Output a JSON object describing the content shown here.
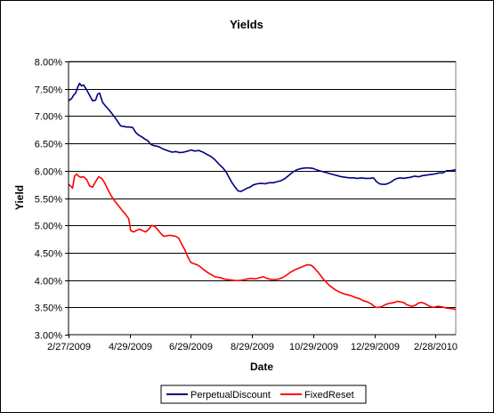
{
  "chart_data": {
    "type": "line",
    "title": "Yields",
    "xlabel": "Date",
    "ylabel": "Yield",
    "ylim": [
      0.03,
      0.08
    ],
    "y_ticks": [
      0.03,
      0.035,
      0.04,
      0.045,
      0.05,
      0.055,
      0.06,
      0.065,
      0.07,
      0.075,
      0.08
    ],
    "y_tick_labels": [
      "3.00%",
      "3.50%",
      "4.00%",
      "4.50%",
      "5.00%",
      "5.50%",
      "6.00%",
      "6.50%",
      "7.00%",
      "7.50%",
      "8.00%"
    ],
    "x_range": [
      "2009-02-27",
      "2010-03-20"
    ],
    "x_ticks": [
      "2009-02-27",
      "2009-04-29",
      "2009-06-29",
      "2009-08-29",
      "2009-10-29",
      "2009-12-29",
      "2010-02-28"
    ],
    "x_tick_labels": [
      "2/27/2009",
      "4/29/2009",
      "6/29/2009",
      "8/29/2009",
      "10/29/2009",
      "12/29/2009",
      "2/28/2010"
    ],
    "grid": "horizontal",
    "legend_position": "bottom",
    "series": [
      {
        "name": "PerpetualDiscount",
        "color": "#000080",
        "points": [
          [
            "2009-02-27",
            0.0728
          ],
          [
            "2009-03-02",
            0.0732
          ],
          [
            "2009-03-04",
            0.0738
          ],
          [
            "2009-03-06",
            0.0742
          ],
          [
            "2009-03-08",
            0.0752
          ],
          [
            "2009-03-10",
            0.076
          ],
          [
            "2009-03-12",
            0.0755
          ],
          [
            "2009-03-14",
            0.0757
          ],
          [
            "2009-03-17",
            0.0748
          ],
          [
            "2009-03-20",
            0.0738
          ],
          [
            "2009-03-23",
            0.0728
          ],
          [
            "2009-03-26",
            0.0729
          ],
          [
            "2009-03-28",
            0.074
          ],
          [
            "2009-03-30",
            0.0742
          ],
          [
            "2009-04-02",
            0.0725
          ],
          [
            "2009-04-05",
            0.0718
          ],
          [
            "2009-04-08",
            0.0712
          ],
          [
            "2009-04-11",
            0.0705
          ],
          [
            "2009-04-14",
            0.0698
          ],
          [
            "2009-04-17",
            0.069
          ],
          [
            "2009-04-20",
            0.0682
          ],
          [
            "2009-04-23",
            0.0681
          ],
          [
            "2009-04-26",
            0.068
          ],
          [
            "2009-04-29",
            0.068
          ],
          [
            "2009-05-02",
            0.0679
          ],
          [
            "2009-05-05",
            0.067
          ],
          [
            "2009-05-08",
            0.0665
          ],
          [
            "2009-05-11",
            0.0662
          ],
          [
            "2009-05-14",
            0.0658
          ],
          [
            "2009-05-17",
            0.0655
          ],
          [
            "2009-05-20",
            0.0648
          ],
          [
            "2009-05-23",
            0.0646
          ],
          [
            "2009-05-26",
            0.0645
          ],
          [
            "2009-05-29",
            0.0643
          ],
          [
            "2009-06-01",
            0.064
          ],
          [
            "2009-06-04",
            0.0638
          ],
          [
            "2009-06-07",
            0.0636
          ],
          [
            "2009-06-10",
            0.0634
          ],
          [
            "2009-06-14",
            0.0635
          ],
          [
            "2009-06-18",
            0.0633
          ],
          [
            "2009-06-22",
            0.0634
          ],
          [
            "2009-06-26",
            0.0636
          ],
          [
            "2009-06-29",
            0.0638
          ],
          [
            "2009-07-03",
            0.0636
          ],
          [
            "2009-07-07",
            0.0637
          ],
          [
            "2009-07-11",
            0.0634
          ],
          [
            "2009-07-15",
            0.063
          ],
          [
            "2009-07-19",
            0.0626
          ],
          [
            "2009-07-23",
            0.062
          ],
          [
            "2009-07-27",
            0.0612
          ],
          [
            "2009-07-31",
            0.0605
          ],
          [
            "2009-08-03",
            0.0598
          ],
          [
            "2009-08-06",
            0.0588
          ],
          [
            "2009-08-09",
            0.0578
          ],
          [
            "2009-08-12",
            0.057
          ],
          [
            "2009-08-15",
            0.0563
          ],
          [
            "2009-08-18",
            0.0562
          ],
          [
            "2009-08-21",
            0.0565
          ],
          [
            "2009-08-24",
            0.0568
          ],
          [
            "2009-08-27",
            0.057
          ],
          [
            "2009-08-30",
            0.0574
          ],
          [
            "2009-09-03",
            0.0576
          ],
          [
            "2009-09-07",
            0.0577
          ],
          [
            "2009-09-11",
            0.0576
          ],
          [
            "2009-09-15",
            0.0578
          ],
          [
            "2009-09-19",
            0.0578
          ],
          [
            "2009-09-23",
            0.058
          ],
          [
            "2009-09-27",
            0.0582
          ],
          [
            "2009-10-01",
            0.0586
          ],
          [
            "2009-10-05",
            0.0592
          ],
          [
            "2009-10-09",
            0.0598
          ],
          [
            "2009-10-13",
            0.0602
          ],
          [
            "2009-10-17",
            0.0604
          ],
          [
            "2009-10-21",
            0.0605
          ],
          [
            "2009-10-25",
            0.0605
          ],
          [
            "2009-10-29",
            0.0604
          ],
          [
            "2009-11-02",
            0.0601
          ],
          [
            "2009-11-06",
            0.0599
          ],
          [
            "2009-11-10",
            0.0597
          ],
          [
            "2009-11-14",
            0.0595
          ],
          [
            "2009-11-18",
            0.0593
          ],
          [
            "2009-11-22",
            0.0591
          ],
          [
            "2009-11-26",
            0.0589
          ],
          [
            "2009-11-30",
            0.0588
          ],
          [
            "2009-12-04",
            0.0587
          ],
          [
            "2009-12-08",
            0.0587
          ],
          [
            "2009-12-12",
            0.0586
          ],
          [
            "2009-12-16",
            0.0587
          ],
          [
            "2009-12-20",
            0.0586
          ],
          [
            "2009-12-24",
            0.0586
          ],
          [
            "2009-12-28",
            0.0587
          ],
          [
            "2009-12-31",
            0.058
          ],
          [
            "2010-01-03",
            0.0576
          ],
          [
            "2010-01-06",
            0.0575
          ],
          [
            "2010-01-09",
            0.0575
          ],
          [
            "2010-01-12",
            0.0577
          ],
          [
            "2010-01-15",
            0.058
          ],
          [
            "2010-01-18",
            0.0584
          ],
          [
            "2010-01-21",
            0.0586
          ],
          [
            "2010-01-24",
            0.0587
          ],
          [
            "2010-01-27",
            0.0586
          ],
          [
            "2010-01-30",
            0.0587
          ],
          [
            "2010-02-03",
            0.0588
          ],
          [
            "2010-02-07",
            0.059
          ],
          [
            "2010-02-11",
            0.0589
          ],
          [
            "2010-02-15",
            0.0591
          ],
          [
            "2010-02-19",
            0.0592
          ],
          [
            "2010-02-23",
            0.0593
          ],
          [
            "2010-02-27",
            0.0594
          ],
          [
            "2010-03-03",
            0.0596
          ],
          [
            "2010-03-07",
            0.0596
          ],
          [
            "2010-03-11",
            0.06
          ],
          [
            "2010-03-15",
            0.06
          ],
          [
            "2010-03-20",
            0.0602
          ]
        ]
      },
      {
        "name": "FixedReset",
        "color": "#ff0000",
        "points": [
          [
            "2009-02-27",
            0.0575
          ],
          [
            "2009-03-01",
            0.0572
          ],
          [
            "2009-03-03",
            0.0568
          ],
          [
            "2009-03-05",
            0.059
          ],
          [
            "2009-03-07",
            0.0594
          ],
          [
            "2009-03-09",
            0.059
          ],
          [
            "2009-03-11",
            0.0588
          ],
          [
            "2009-03-14",
            0.0589
          ],
          [
            "2009-03-17",
            0.0584
          ],
          [
            "2009-03-20",
            0.0572
          ],
          [
            "2009-03-23",
            0.057
          ],
          [
            "2009-03-26",
            0.058
          ],
          [
            "2009-03-29",
            0.0589
          ],
          [
            "2009-04-01",
            0.0586
          ],
          [
            "2009-04-04",
            0.0578
          ],
          [
            "2009-04-07",
            0.0566
          ],
          [
            "2009-04-10",
            0.0556
          ],
          [
            "2009-04-13",
            0.0547
          ],
          [
            "2009-04-16",
            0.054
          ],
          [
            "2009-04-19",
            0.0533
          ],
          [
            "2009-04-22",
            0.0526
          ],
          [
            "2009-04-25",
            0.052
          ],
          [
            "2009-04-28",
            0.0512
          ],
          [
            "2009-04-30",
            0.049
          ],
          [
            "2009-05-03",
            0.0488
          ],
          [
            "2009-05-06",
            0.0491
          ],
          [
            "2009-05-09",
            0.0493
          ],
          [
            "2009-05-12",
            0.049
          ],
          [
            "2009-05-15",
            0.0488
          ],
          [
            "2009-05-18",
            0.0493
          ],
          [
            "2009-05-21",
            0.05
          ],
          [
            "2009-05-24",
            0.0498
          ],
          [
            "2009-05-27",
            0.0492
          ],
          [
            "2009-05-30",
            0.0485
          ],
          [
            "2009-06-02",
            0.048
          ],
          [
            "2009-06-05",
            0.0481
          ],
          [
            "2009-06-08",
            0.0482
          ],
          [
            "2009-06-11",
            0.0481
          ],
          [
            "2009-06-14",
            0.048
          ],
          [
            "2009-06-17",
            0.0476
          ],
          [
            "2009-06-20",
            0.0465
          ],
          [
            "2009-06-23",
            0.0455
          ],
          [
            "2009-06-26",
            0.0442
          ],
          [
            "2009-06-29",
            0.0432
          ],
          [
            "2009-07-02",
            0.043
          ],
          [
            "2009-07-05",
            0.0428
          ],
          [
            "2009-07-08",
            0.0425
          ],
          [
            "2009-07-11",
            0.042
          ],
          [
            "2009-07-14",
            0.0416
          ],
          [
            "2009-07-17",
            0.0412
          ],
          [
            "2009-07-20",
            0.0409
          ],
          [
            "2009-07-23",
            0.0406
          ],
          [
            "2009-07-26",
            0.0405
          ],
          [
            "2009-07-29",
            0.0404
          ],
          [
            "2009-08-01",
            0.0402
          ],
          [
            "2009-08-04",
            0.0401
          ],
          [
            "2009-08-08",
            0.04
          ],
          [
            "2009-08-12",
            0.0399
          ],
          [
            "2009-08-16",
            0.0399
          ],
          [
            "2009-08-20",
            0.04
          ],
          [
            "2009-08-24",
            0.0402
          ],
          [
            "2009-08-28",
            0.0403
          ],
          [
            "2009-09-01",
            0.0402
          ],
          [
            "2009-09-05",
            0.0404
          ],
          [
            "2009-09-09",
            0.0406
          ],
          [
            "2009-09-13",
            0.0403
          ],
          [
            "2009-09-17",
            0.0401
          ],
          [
            "2009-09-21",
            0.0401
          ],
          [
            "2009-09-25",
            0.0402
          ],
          [
            "2009-09-29",
            0.0405
          ],
          [
            "2009-10-03",
            0.041
          ],
          [
            "2009-10-07",
            0.0415
          ],
          [
            "2009-10-11",
            0.0419
          ],
          [
            "2009-10-15",
            0.0422
          ],
          [
            "2009-10-19",
            0.0425
          ],
          [
            "2009-10-23",
            0.0428
          ],
          [
            "2009-10-27",
            0.0427
          ],
          [
            "2009-10-30",
            0.0422
          ],
          [
            "2009-11-02",
            0.0416
          ],
          [
            "2009-11-05",
            0.0409
          ],
          [
            "2009-11-08",
            0.0402
          ],
          [
            "2009-11-11",
            0.0396
          ],
          [
            "2009-11-14",
            0.039
          ],
          [
            "2009-11-17",
            0.0386
          ],
          [
            "2009-11-20",
            0.0382
          ],
          [
            "2009-11-24",
            0.0378
          ],
          [
            "2009-11-28",
            0.0375
          ],
          [
            "2009-12-02",
            0.0373
          ],
          [
            "2009-12-06",
            0.0371
          ],
          [
            "2009-12-10",
            0.0368
          ],
          [
            "2009-12-14",
            0.0366
          ],
          [
            "2009-12-18",
            0.0362
          ],
          [
            "2009-12-22",
            0.036
          ],
          [
            "2009-12-26",
            0.0356
          ],
          [
            "2009-12-30",
            0.035
          ],
          [
            "2010-01-03",
            0.035
          ],
          [
            "2010-01-06",
            0.0352
          ],
          [
            "2010-01-09",
            0.0355
          ],
          [
            "2010-01-12",
            0.0357
          ],
          [
            "2010-01-15",
            0.0358
          ],
          [
            "2010-01-18",
            0.0359
          ],
          [
            "2010-01-21",
            0.0361
          ],
          [
            "2010-01-24",
            0.036
          ],
          [
            "2010-01-27",
            0.0359
          ],
          [
            "2010-01-30",
            0.0355
          ],
          [
            "2010-02-02",
            0.0353
          ],
          [
            "2010-02-05",
            0.0352
          ],
          [
            "2010-02-08",
            0.0354
          ],
          [
            "2010-02-11",
            0.0358
          ],
          [
            "2010-02-14",
            0.0359
          ],
          [
            "2010-02-17",
            0.0357
          ],
          [
            "2010-02-20",
            0.0354
          ],
          [
            "2010-02-23",
            0.0351
          ],
          [
            "2010-02-26",
            0.035
          ],
          [
            "2010-03-02",
            0.0352
          ],
          [
            "2010-03-06",
            0.0351
          ],
          [
            "2010-03-10",
            0.0349
          ],
          [
            "2010-03-14",
            0.0348
          ],
          [
            "2010-03-18",
            0.0347
          ],
          [
            "2010-03-20",
            0.0346
          ]
        ]
      }
    ]
  }
}
